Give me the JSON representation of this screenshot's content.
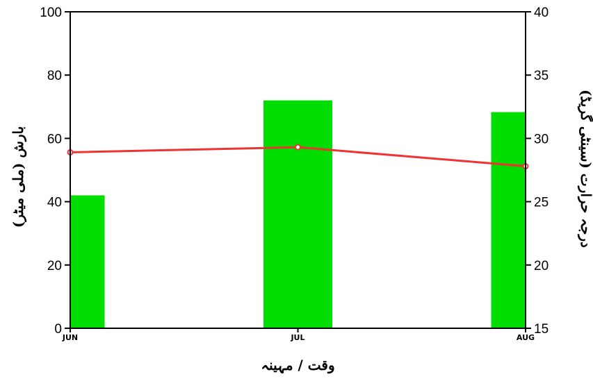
{
  "chart_data": {
    "type": "bar",
    "categories": [
      "JUN",
      "JUL",
      "AUG"
    ],
    "series": [
      {
        "type": "bar",
        "axis": "left",
        "values": [
          42,
          72,
          68.3
        ]
      },
      {
        "type": "line",
        "axis": "right",
        "values": [
          28.9,
          29.3,
          27.8
        ]
      }
    ],
    "xlabel": "وقت / مہینہ",
    "ylabel": "بارش (ملی میٹر)",
    "y2label": "درجہ حرارت (سینٹی گریڈ)",
    "ylim": [
      0,
      100
    ],
    "y2lim": [
      15,
      40
    ],
    "yticks": [
      "0",
      "20",
      "40",
      "60",
      "80",
      "100"
    ],
    "y2ticks": [
      "15",
      "20",
      "25",
      "30",
      "35",
      "40"
    ],
    "colors": {
      "bar": "#00dd00",
      "line": "#ee3333"
    },
    "grid": false
  }
}
